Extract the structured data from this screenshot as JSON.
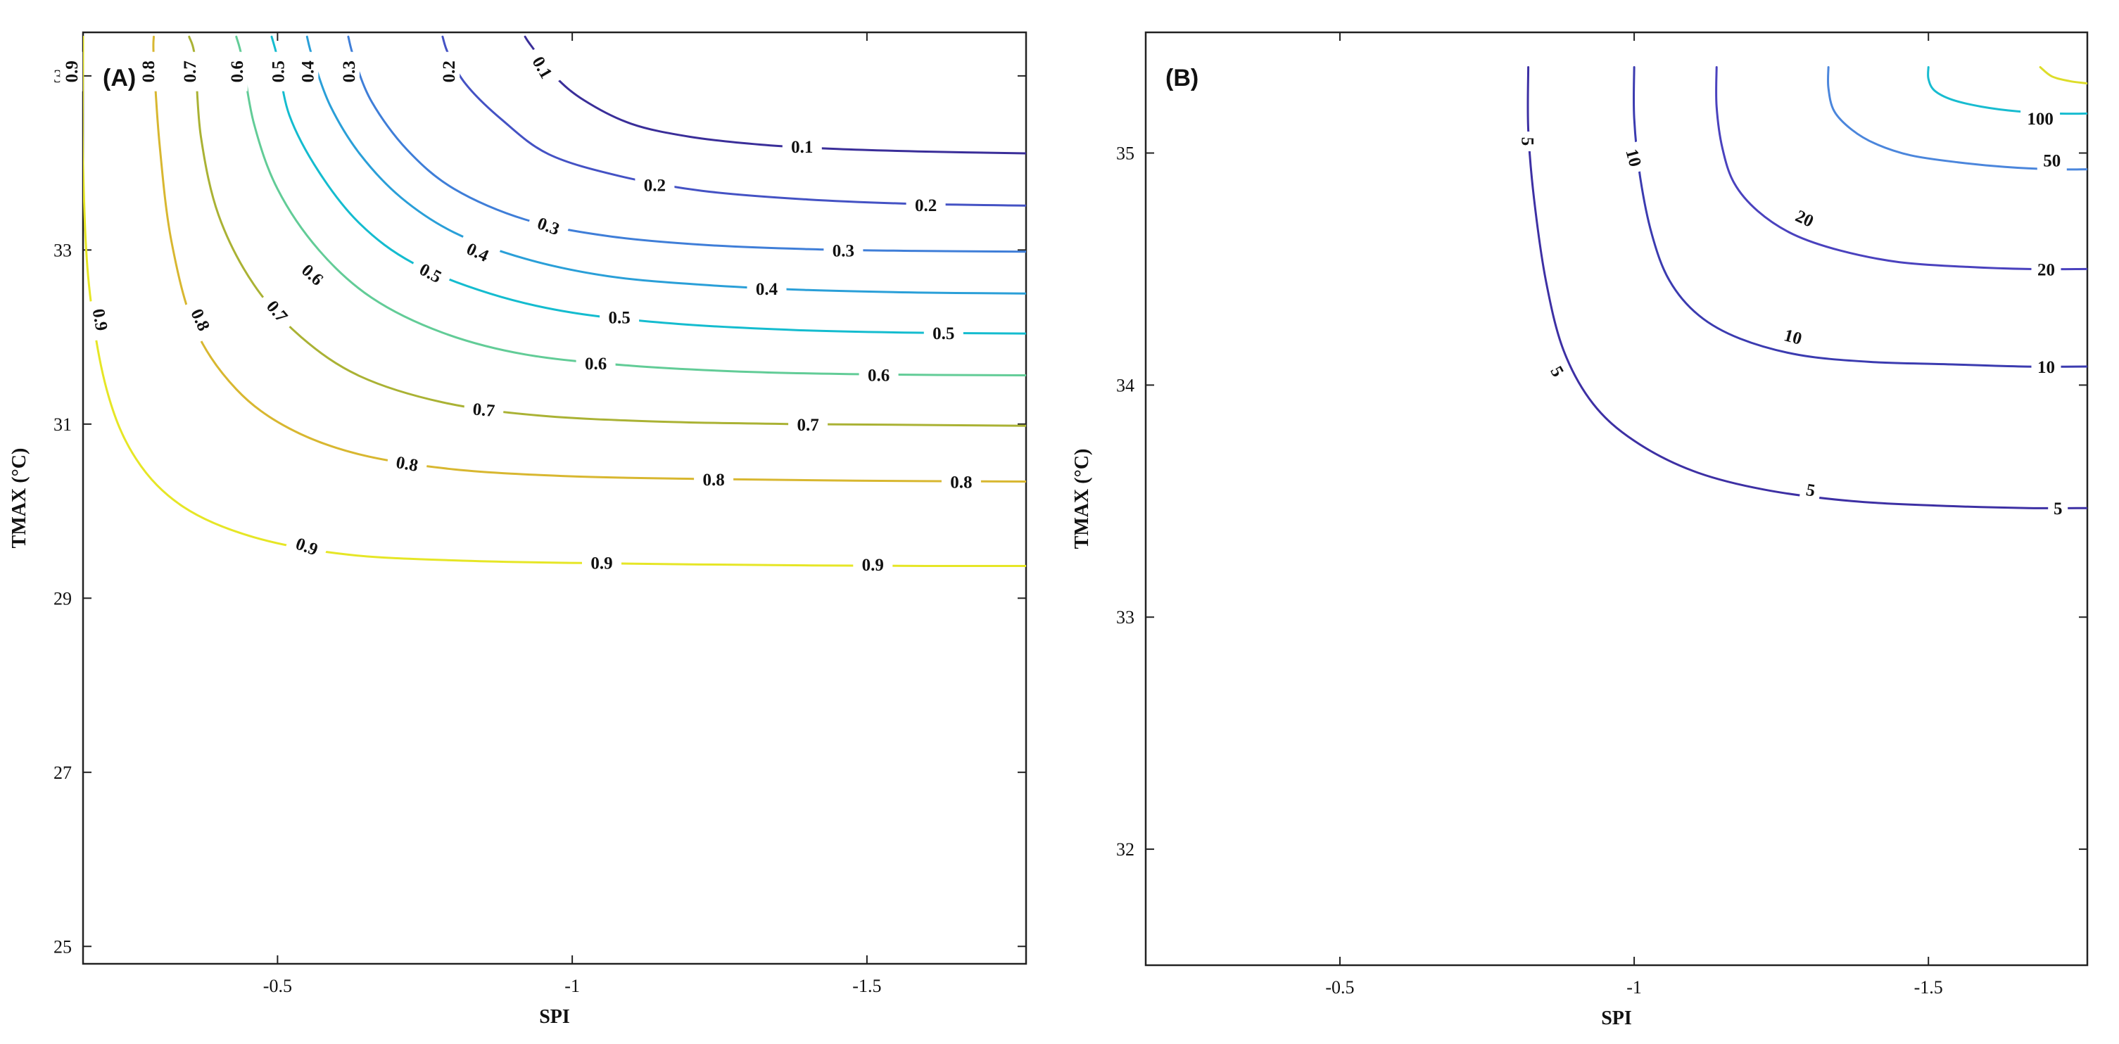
{
  "chart_data": [
    {
      "type": "contour",
      "panel_label": "(A)",
      "xlabel": "SPI",
      "ylabel": "TMAX (°C)",
      "x_reversed": true,
      "xlim": [
        -0.17,
        -1.77
      ],
      "ylim": [
        24.8,
        35.5
      ],
      "xticks": [
        -0.5,
        -1,
        -1.5
      ],
      "xtick_labels": [
        "-0.5",
        "-1",
        "-1.5"
      ],
      "yticks": [
        25,
        27,
        29,
        31,
        33,
        35
      ],
      "ytick_labels": [
        "25",
        "27",
        "29",
        "31",
        "33",
        "35"
      ],
      "grid": false,
      "colors": {
        "0.1": "#3a2e99",
        "0.2": "#4452c4",
        "0.3": "#3f7ed8",
        "0.4": "#2a9fd8",
        "0.5": "#14bccf",
        "0.6": "#62cc97",
        "0.7": "#aab234",
        "0.8": "#d8b730",
        "0.9": "#e6e626"
      },
      "levels": [
        {
          "level": "0.1",
          "x0": -0.92,
          "y0": 35.45,
          "xs": [
            -0.93,
            -0.97,
            -1.02,
            -1.1,
            -1.2,
            -1.32,
            -1.45,
            -1.6,
            -1.77
          ],
          "ys": [
            35.35,
            35.0,
            34.72,
            34.45,
            34.3,
            34.21,
            34.16,
            34.13,
            34.11
          ],
          "labels": [
            {
              "text": "0.1",
              "x": -0.95,
              "y": 35.1,
              "rotate": 60
            },
            {
              "text": "0.1",
              "x": -1.39,
              "y": 34.19,
              "rotate": 0
            }
          ]
        },
        {
          "level": "0.2",
          "x0": -0.78,
          "y0": 35.45,
          "xs": [
            -0.79,
            -0.82,
            -0.88,
            -0.96,
            -1.08,
            -1.22,
            -1.4,
            -1.58,
            -1.77
          ],
          "ys": [
            35.25,
            34.9,
            34.5,
            34.1,
            33.85,
            33.68,
            33.58,
            33.53,
            33.51
          ],
          "labels": [
            {
              "text": "0.2",
              "x": -0.79,
              "y": 35.05,
              "rotate": -90
            },
            {
              "text": "0.2",
              "x": -1.14,
              "y": 33.75,
              "rotate": 0
            },
            {
              "text": "0.2",
              "x": -1.6,
              "y": 33.52,
              "rotate": 0
            }
          ]
        },
        {
          "level": "0.3",
          "x0": -0.62,
          "y0": 35.45,
          "xs": [
            -0.63,
            -0.66,
            -0.72,
            -0.8,
            -0.92,
            -1.06,
            -1.22,
            -1.4,
            -1.58,
            -1.77
          ],
          "ys": [
            35.2,
            34.7,
            34.15,
            33.7,
            33.35,
            33.16,
            33.06,
            33.01,
            32.99,
            32.98
          ],
          "labels": [
            {
              "text": "0.3",
              "x": -0.62,
              "y": 35.05,
              "rotate": -90
            },
            {
              "text": "0.3",
              "x": -0.96,
              "y": 33.28,
              "rotate": 20
            },
            {
              "text": "0.3",
              "x": -1.46,
              "y": 33.0,
              "rotate": 0
            }
          ]
        },
        {
          "level": "0.4",
          "x0": -0.55,
          "y0": 35.45,
          "xs": [
            -0.56,
            -0.59,
            -0.64,
            -0.71,
            -0.8,
            -0.92,
            -1.06,
            -1.22,
            -1.4,
            -1.6,
            -1.77
          ],
          "ys": [
            35.2,
            34.65,
            34.1,
            33.6,
            33.2,
            32.9,
            32.7,
            32.6,
            32.54,
            32.51,
            32.5
          ],
          "labels": [
            {
              "text": "0.4",
              "x": -0.55,
              "y": 35.05,
              "rotate": -90
            },
            {
              "text": "0.4",
              "x": -0.84,
              "y": 32.98,
              "rotate": 25
            },
            {
              "text": "0.4",
              "x": -1.33,
              "y": 32.56,
              "rotate": 0
            }
          ]
        },
        {
          "level": "0.5",
          "x0": -0.49,
          "y0": 35.45,
          "xs": [
            -0.5,
            -0.52,
            -0.57,
            -0.64,
            -0.73,
            -0.86,
            -1.0,
            -1.18,
            -1.38,
            -1.58,
            -1.77
          ],
          "ys": [
            35.2,
            34.55,
            33.9,
            33.3,
            32.85,
            32.5,
            32.28,
            32.15,
            32.08,
            32.05,
            32.04
          ],
          "labels": [
            {
              "text": "0.5",
              "x": -0.5,
              "y": 35.05,
              "rotate": -90
            },
            {
              "text": "0.5",
              "x": -0.76,
              "y": 32.74,
              "rotate": 28
            },
            {
              "text": "0.5",
              "x": -1.08,
              "y": 32.23,
              "rotate": 0
            },
            {
              "text": "0.5",
              "x": -1.63,
              "y": 32.05,
              "rotate": 0
            }
          ]
        },
        {
          "level": "0.6",
          "x0": -0.43,
          "y0": 35.45,
          "xs": [
            -0.44,
            -0.46,
            -0.5,
            -0.57,
            -0.66,
            -0.78,
            -0.92,
            -1.1,
            -1.3,
            -1.52,
            -1.77
          ],
          "ys": [
            35.2,
            34.45,
            33.7,
            33.0,
            32.45,
            32.05,
            31.8,
            31.67,
            31.6,
            31.57,
            31.56
          ],
          "labels": [
            {
              "text": "0.6",
              "x": -0.43,
              "y": 35.05,
              "rotate": -90
            },
            {
              "text": "0.6",
              "x": -0.56,
              "y": 32.72,
              "rotate": 42
            },
            {
              "text": "0.6",
              "x": -1.04,
              "y": 31.7,
              "rotate": 0
            },
            {
              "text": "0.6",
              "x": -1.52,
              "y": 31.57,
              "rotate": 0
            }
          ]
        },
        {
          "level": "0.7",
          "x0": -0.35,
          "y0": 35.45,
          "xs": [
            -0.36,
            -0.37,
            -0.4,
            -0.46,
            -0.54,
            -0.64,
            -0.78,
            -0.94,
            -1.14,
            -1.38,
            -1.6,
            -1.77
          ],
          "ys": [
            35.2,
            34.3,
            33.4,
            32.6,
            32.0,
            31.55,
            31.25,
            31.1,
            31.03,
            31.0,
            30.99,
            30.98
          ],
          "labels": [
            {
              "text": "0.7",
              "x": -0.35,
              "y": 35.05,
              "rotate": -90
            },
            {
              "text": "0.7",
              "x": -0.5,
              "y": 32.3,
              "rotate": 50
            },
            {
              "text": "0.7",
              "x": -0.85,
              "y": 31.17,
              "rotate": 5
            },
            {
              "text": "0.7",
              "x": -1.4,
              "y": 31.0,
              "rotate": 0
            }
          ]
        },
        {
          "level": "0.8",
          "x0": -0.29,
          "y0": 35.45,
          "xs": [
            -0.29,
            -0.3,
            -0.32,
            -0.36,
            -0.43,
            -0.52,
            -0.64,
            -0.8,
            -1.0,
            -1.22,
            -1.48,
            -1.77
          ],
          "ys": [
            35.2,
            34.2,
            33.1,
            32.1,
            31.4,
            30.95,
            30.65,
            30.48,
            30.4,
            30.37,
            30.35,
            30.34
          ],
          "labels": [
            {
              "text": "0.8",
              "x": -0.28,
              "y": 35.05,
              "rotate": -90
            },
            {
              "text": "0.8",
              "x": -0.37,
              "y": 32.2,
              "rotate": 65
            },
            {
              "text": "0.8",
              "x": -0.72,
              "y": 30.55,
              "rotate": 10
            },
            {
              "text": "0.8",
              "x": -1.24,
              "y": 30.37,
              "rotate": 0
            },
            {
              "text": "0.8",
              "x": -1.66,
              "y": 30.34,
              "rotate": 0
            }
          ]
        },
        {
          "level": "0.9",
          "x0": -0.17,
          "y0": 35.45,
          "xs": [
            -0.17,
            -0.17,
            -0.18,
            -0.21,
            -0.26,
            -0.34,
            -0.46,
            -0.62,
            -0.82,
            -1.06,
            -1.34,
            -1.6,
            -1.77
          ],
          "ys": [
            35.2,
            34.0,
            32.6,
            31.4,
            30.6,
            30.05,
            29.7,
            29.5,
            29.43,
            29.4,
            29.38,
            29.37,
            29.37
          ],
          "labels": [
            {
              "text": "0.9",
              "x": -0.15,
              "y": 35.05,
              "rotate": -90
            },
            {
              "text": "0.9",
              "x": -0.2,
              "y": 32.2,
              "rotate": 80
            },
            {
              "text": "0.9",
              "x": -0.55,
              "y": 29.6,
              "rotate": 20
            },
            {
              "text": "0.9",
              "x": -1.05,
              "y": 29.41,
              "rotate": 0
            },
            {
              "text": "0.9",
              "x": -1.51,
              "y": 29.39,
              "rotate": 0
            }
          ]
        }
      ]
    },
    {
      "type": "contour",
      "panel_label": "(B)",
      "xlabel": "SPI",
      "ylabel": "TMAX (°C)",
      "x_reversed": true,
      "xlim": [
        -0.17,
        -1.77
      ],
      "ylim": [
        31.5,
        35.52
      ],
      "xticks": [
        -0.5,
        -1,
        -1.5
      ],
      "xtick_labels": [
        "-0.5",
        "-1",
        "-1.5"
      ],
      "yticks": [
        32,
        33,
        34,
        35
      ],
      "ytick_labels": [
        "32",
        "33",
        "34",
        "35"
      ],
      "grid": false,
      "colors": {
        "5": "#3d30a4",
        "10": "#3b3bb0",
        "20": "#4a42be",
        "50": "#4b86dc",
        "100": "#18bcd0",
        "200": "#dddd2a"
      },
      "levels": [
        {
          "level": "5",
          "x0": -0.82,
          "y0": 35.37,
          "xs": [
            -0.82,
            -0.83,
            -0.85,
            -0.88,
            -0.93,
            -1.0,
            -1.1,
            -1.22,
            -1.37,
            -1.52,
            -1.67,
            -1.77
          ],
          "ys": [
            35.1,
            34.8,
            34.45,
            34.15,
            33.92,
            33.76,
            33.63,
            33.55,
            33.5,
            33.48,
            33.47,
            33.47
          ],
          "labels": [
            {
              "text": "5",
              "x": -0.82,
              "y": 35.05,
              "rotate": 90
            },
            {
              "text": "5",
              "x": -0.87,
              "y": 34.06,
              "rotate": 60
            },
            {
              "text": "5",
              "x": -1.3,
              "y": 33.55,
              "rotate": 10
            },
            {
              "text": "5",
              "x": -1.72,
              "y": 33.47,
              "rotate": 0
            }
          ]
        },
        {
          "level": "10",
          "x0": -1.0,
          "y0": 35.37,
          "xs": [
            -1.0,
            -1.01,
            -1.03,
            -1.06,
            -1.11,
            -1.18,
            -1.28,
            -1.4,
            -1.53,
            -1.66,
            -1.77
          ],
          "ys": [
            35.15,
            34.9,
            34.65,
            34.45,
            34.3,
            34.2,
            34.13,
            34.1,
            34.09,
            34.08,
            34.08
          ],
          "labels": [
            {
              "text": "10",
              "x": -1.0,
              "y": 34.98,
              "rotate": 75
            },
            {
              "text": "10",
              "x": -1.27,
              "y": 34.21,
              "rotate": 15
            },
            {
              "text": "10",
              "x": -1.7,
              "y": 34.08,
              "rotate": 0
            }
          ]
        },
        {
          "level": "20",
          "x0": -1.14,
          "y0": 35.37,
          "xs": [
            -1.14,
            -1.15,
            -1.17,
            -1.21,
            -1.27,
            -1.35,
            -1.45,
            -1.56,
            -1.67,
            -1.77
          ],
          "ys": [
            35.2,
            35.02,
            34.87,
            34.75,
            34.65,
            34.58,
            34.53,
            34.51,
            34.5,
            34.5
          ],
          "labels": [
            {
              "text": "20",
              "x": -1.29,
              "y": 34.72,
              "rotate": 25
            },
            {
              "text": "20",
              "x": -1.7,
              "y": 34.5,
              "rotate": 0
            }
          ]
        },
        {
          "level": "50",
          "x0": -1.33,
          "y0": 35.37,
          "xs": [
            -1.33,
            -1.34,
            -1.37,
            -1.41,
            -1.47,
            -1.55,
            -1.63,
            -1.71,
            -1.77
          ],
          "ys": [
            35.28,
            35.18,
            35.1,
            35.04,
            34.99,
            34.96,
            34.94,
            34.93,
            34.93
          ],
          "labels": [
            {
              "text": "50",
              "x": -1.71,
              "y": 34.97,
              "rotate": 0
            }
          ]
        },
        {
          "level": "100",
          "x0": -1.5,
          "y0": 35.37,
          "xs": [
            -1.5,
            -1.51,
            -1.54,
            -1.59,
            -1.65,
            -1.72,
            -1.77
          ],
          "ys": [
            35.32,
            35.27,
            35.23,
            35.2,
            35.18,
            35.17,
            35.17
          ],
          "labels": [
            {
              "text": "100",
              "x": -1.69,
              "y": 35.15,
              "rotate": 0
            }
          ]
        },
        {
          "level": "200",
          "x0": -1.69,
          "y0": 35.37,
          "xs": [
            -1.71,
            -1.74,
            -1.77
          ],
          "ys": [
            35.33,
            35.31,
            35.3
          ],
          "labels": []
        }
      ]
    }
  ]
}
